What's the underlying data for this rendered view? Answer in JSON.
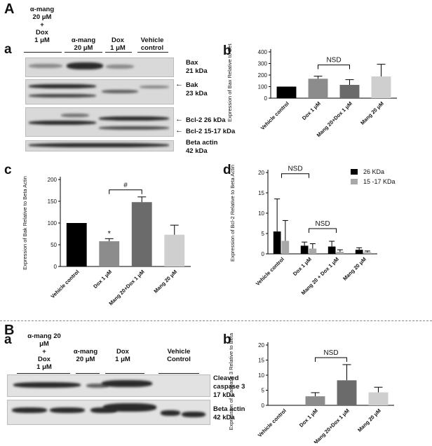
{
  "panels": {
    "A": "A",
    "B": "B",
    "Aa": "a",
    "Ab": "b",
    "Ac": "c",
    "Ad": "d",
    "Ba": "a",
    "Bb": "b"
  },
  "blotA": {
    "lanes": [
      {
        "label_l1": "α-mang",
        "label_l2": "20 μM",
        "label_l3": "+",
        "label_l4": "Dox",
        "label_l5": "1 μM"
      },
      {
        "label_l1": "α-mang",
        "label_l2": "20 μM"
      },
      {
        "label_l1": "Dox",
        "label_l2": "1 μM"
      },
      {
        "label_l1": "Vehicle",
        "label_l2": "control"
      }
    ],
    "rows": [
      {
        "name": "Bax",
        "kda": "21 kDa"
      },
      {
        "name": "Bak",
        "kda": "23 kDa"
      },
      {
        "name": "Bcl-2 26 kDa",
        "kda": "Bcl-2 15-17 kDa"
      },
      {
        "name": "Beta actin",
        "kda": "42 kDa"
      }
    ]
  },
  "blotB": {
    "lanes": [
      {
        "label_l1": "α-mang 20",
        "label_l2": "μM",
        "label_l3": "+",
        "label_l4": "Dox",
        "label_l5": "1 μM"
      },
      {
        "label_l1": "α-mang",
        "label_l2": "20 μM"
      },
      {
        "label_l1": "Dox",
        "label_l2": "1 μM"
      },
      {
        "label_l1": "Vehicle",
        "label_l2": "Control"
      }
    ],
    "rows": [
      {
        "name": "Cleaved",
        "name2": "caspase 3",
        "kda": "17 kDa"
      },
      {
        "name": "Beta actin",
        "kda": "42 kDa"
      }
    ]
  },
  "chart_data": [
    {
      "id": "Ab",
      "type": "bar",
      "categories": [
        "Vehicle control",
        "Dox 1 μM",
        "Mang 20+Dox 1 μM",
        "Mang 20 μM"
      ],
      "values": [
        100,
        168,
        115,
        188
      ],
      "errors": [
        0,
        22,
        45,
        105
      ],
      "colors": [
        "#000000",
        "#8c8c8c",
        "#6b6b6b",
        "#cfcfcf"
      ],
      "ylabel": "Expression of Bax Relative to Beta Actin",
      "ylim": [
        0,
        400
      ],
      "yticks": [
        "0",
        "100",
        "200",
        "300",
        "400"
      ],
      "annotations": [
        {
          "text": "NSD",
          "from": 1,
          "to": 2
        }
      ]
    },
    {
      "id": "Ac",
      "type": "bar",
      "categories": [
        "Vehicle control",
        "Dox 1 μM",
        "Mang 20+Dox 1 μM",
        "Mang 20 μM"
      ],
      "values": [
        100,
        58,
        148,
        73
      ],
      "errors": [
        0,
        6,
        12,
        22
      ],
      "colors": [
        "#000000",
        "#8c8c8c",
        "#6b6b6b",
        "#cfcfcf"
      ],
      "ylabel": "Expression of Bak Relative to Beta Actin",
      "ylim": [
        0,
        200
      ],
      "yticks": [
        "0",
        "50",
        "100",
        "150",
        "200"
      ],
      "annotations": [
        {
          "text": "*",
          "on": 1
        },
        {
          "text": "#",
          "from": 1,
          "to": 2
        }
      ]
    },
    {
      "id": "Ad",
      "type": "bar",
      "categories": [
        "Vehicle control",
        "Dox 1 μM",
        "Mang 20 + Dox 1 μM",
        "Mang 20 μM"
      ],
      "series": [
        {
          "name": "26 KDa",
          "color": "#000000",
          "values": [
            5.5,
            2.0,
            1.8,
            1.0
          ],
          "errors": [
            8.0,
            0.9,
            1.3,
            0.5
          ]
        },
        {
          "name": "15 -17 KDa",
          "color": "#a8a8a8",
          "values": [
            3.2,
            1.3,
            0.5,
            0.4
          ],
          "errors": [
            5.0,
            1.2,
            0.5,
            0.3
          ]
        }
      ],
      "ylabel": "Expression of Bcl-2 Relative to Beta Actin",
      "ylim": [
        0,
        20
      ],
      "yticks": [
        "0",
        "5",
        "10",
        "15",
        "20"
      ],
      "legend": "top-right",
      "annotations": [
        {
          "text": "NSD",
          "from": 0,
          "to": 1
        },
        {
          "text": "NSD",
          "from": 1,
          "to": 2
        }
      ]
    },
    {
      "id": "Bb",
      "type": "bar",
      "categories": [
        "Vehicle control",
        "Dox 1 μM",
        "Mang 20+Dox 1 μM",
        "Mang 20 μM"
      ],
      "values": [
        0,
        3.0,
        8.3,
        4.3
      ],
      "errors": [
        0,
        1.2,
        5.2,
        1.7
      ],
      "colors": [
        "#000000",
        "#8c8c8c",
        "#6b6b6b",
        "#cfcfcf"
      ],
      "ylabel": "Expression of Caspase 3 Relative to Beta Actin",
      "ylim": [
        0,
        20
      ],
      "yticks": [
        "0",
        "5",
        "10",
        "15",
        "20"
      ],
      "annotations": [
        {
          "text": "NSD",
          "from": 1,
          "to": 2
        }
      ]
    }
  ]
}
